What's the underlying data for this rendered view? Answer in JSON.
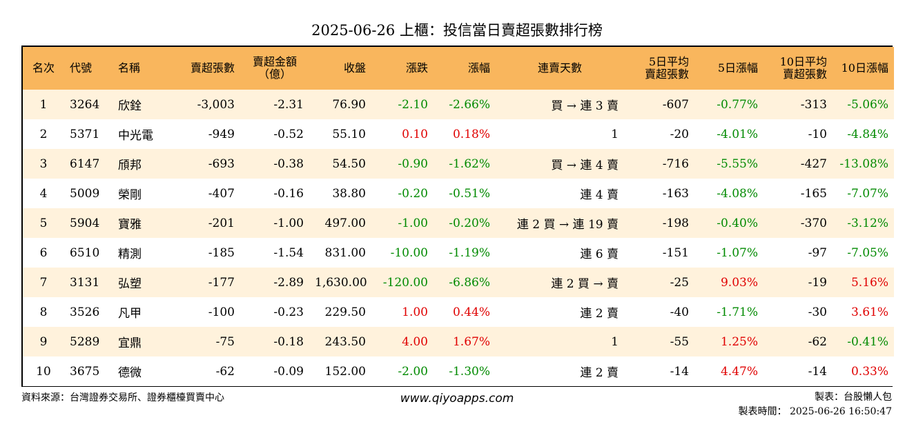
{
  "title": "2025-06-26 上櫃：投信當日賣超張數排行榜",
  "headers": {
    "rank": "名次",
    "code": "代號",
    "name": "名稱",
    "sell_lots": "賣超張數",
    "sell_amount_1": "賣超金額",
    "sell_amount_2": "（億）",
    "close": "收盤",
    "change": "漲跌",
    "change_pct": "漲幅",
    "streak": "連賣天數",
    "avg5_1": "5日平均",
    "avg5_2": "賣超張數",
    "chg5": "5日漲幅",
    "avg10_1": "10日平均",
    "avg10_2": "賣超張數",
    "chg10": "10日漲幅"
  },
  "rows": [
    {
      "rank": "1",
      "code": "3264",
      "name": "欣銓",
      "sell_lots": "-3,003",
      "amount": "-2.31",
      "close": "76.90",
      "change": "-2.10",
      "change_pct": "-2.66%",
      "streak": "買 → 連 3 賣",
      "avg5": "-607",
      "chg5": "-0.77%",
      "avg10": "-313",
      "chg10": "-5.06%"
    },
    {
      "rank": "2",
      "code": "5371",
      "name": "中光電",
      "sell_lots": "-949",
      "amount": "-0.52",
      "close": "55.10",
      "change": "0.10",
      "change_pct": "0.18%",
      "streak": "1",
      "avg5": "-20",
      "chg5": "-4.01%",
      "avg10": "-10",
      "chg10": "-4.84%"
    },
    {
      "rank": "3",
      "code": "6147",
      "name": "頎邦",
      "sell_lots": "-693",
      "amount": "-0.38",
      "close": "54.50",
      "change": "-0.90",
      "change_pct": "-1.62%",
      "streak": "買 → 連 4 賣",
      "avg5": "-716",
      "chg5": "-5.55%",
      "avg10": "-427",
      "chg10": "-13.08%"
    },
    {
      "rank": "4",
      "code": "5009",
      "name": "榮剛",
      "sell_lots": "-407",
      "amount": "-0.16",
      "close": "38.80",
      "change": "-0.20",
      "change_pct": "-0.51%",
      "streak": "連 4 賣",
      "avg5": "-163",
      "chg5": "-4.08%",
      "avg10": "-165",
      "chg10": "-7.07%"
    },
    {
      "rank": "5",
      "code": "5904",
      "name": "寶雅",
      "sell_lots": "-201",
      "amount": "-1.00",
      "close": "497.00",
      "change": "-1.00",
      "change_pct": "-0.20%",
      "streak": "連 2 買 → 連 19 賣",
      "avg5": "-198",
      "chg5": "-0.40%",
      "avg10": "-370",
      "chg10": "-3.12%"
    },
    {
      "rank": "6",
      "code": "6510",
      "name": "精測",
      "sell_lots": "-185",
      "amount": "-1.54",
      "close": "831.00",
      "change": "-10.00",
      "change_pct": "-1.19%",
      "streak": "連 6 賣",
      "avg5": "-151",
      "chg5": "-1.07%",
      "avg10": "-97",
      "chg10": "-7.05%"
    },
    {
      "rank": "7",
      "code": "3131",
      "name": "弘塑",
      "sell_lots": "-177",
      "amount": "-2.89",
      "close": "1,630.00",
      "change": "-120.00",
      "change_pct": "-6.86%",
      "streak": "連 2 買 → 賣",
      "avg5": "-25",
      "chg5": "9.03%",
      "avg10": "-19",
      "chg10": "5.16%"
    },
    {
      "rank": "8",
      "code": "3526",
      "name": "凡甲",
      "sell_lots": "-100",
      "amount": "-0.23",
      "close": "229.50",
      "change": "1.00",
      "change_pct": "0.44%",
      "streak": "連 2 賣",
      "avg5": "-40",
      "chg5": "-1.71%",
      "avg10": "-30",
      "chg10": "3.61%"
    },
    {
      "rank": "9",
      "code": "5289",
      "name": "宜鼎",
      "sell_lots": "-75",
      "amount": "-0.18",
      "close": "243.50",
      "change": "4.00",
      "change_pct": "1.67%",
      "streak": "1",
      "avg5": "-55",
      "chg5": "1.25%",
      "avg10": "-62",
      "chg10": "-0.41%"
    },
    {
      "rank": "10",
      "code": "3675",
      "name": "德微",
      "sell_lots": "-62",
      "amount": "-0.09",
      "close": "152.00",
      "change": "-2.00",
      "change_pct": "-1.30%",
      "streak": "連 2 賣",
      "avg5": "-14",
      "chg5": "4.47%",
      "avg10": "-14",
      "chg10": "0.33%"
    }
  ],
  "footer": {
    "source": "資料來源：台灣證券交易所、證券櫃檯買賣中心",
    "website": "www.qiyoapps.com",
    "maker": "製表：台股懶人包",
    "time": "製表時間： 2025-06-26 16:50:47"
  },
  "colors": {
    "header_bg": "#f9b65d",
    "row_alt": "#fff2dc",
    "up": "#e00000",
    "down": "#008a00"
  }
}
